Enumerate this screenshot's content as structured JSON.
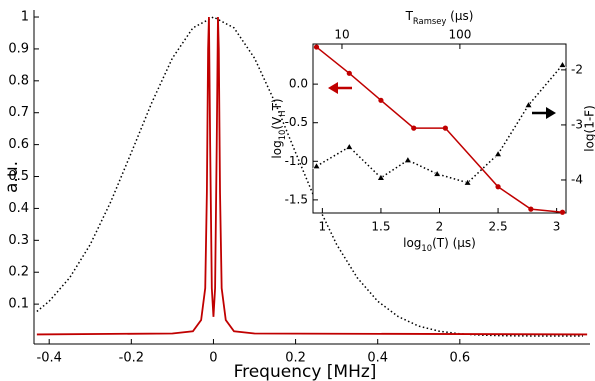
{
  "chart_data": [
    {
      "type": "line",
      "xlabel": "Frequency [MHz]",
      "ylabel": "a.u.",
      "xlim": [
        -0.437,
        0.917
      ],
      "ylim": [
        -0.025,
        1.022
      ],
      "xticks": [
        -0.4,
        -0.2,
        0,
        0.2,
        0.4,
        0.6
      ],
      "yticks": [
        0.1,
        0.2,
        0.3,
        0.4,
        0.5,
        0.6,
        0.7,
        0.8,
        0.9,
        1
      ],
      "series": [
        {
          "color": "#000000",
          "dash": "dotted",
          "x": [
            -0.43,
            -0.4,
            -0.35,
            -0.3,
            -0.25,
            -0.2,
            -0.15,
            -0.1,
            -0.05,
            0,
            0.05,
            0.1,
            0.15,
            0.2,
            0.25,
            0.3,
            0.35,
            0.4,
            0.45,
            0.5,
            0.55,
            0.6,
            0.65,
            0.7,
            0.75,
            0.8,
            0.85,
            0.9
          ],
          "values": [
            0.077,
            0.109,
            0.183,
            0.287,
            0.421,
            0.575,
            0.732,
            0.871,
            0.966,
            1,
            0.966,
            0.871,
            0.732,
            0.575,
            0.421,
            0.287,
            0.183,
            0.109,
            0.061,
            0.031,
            0.0151,
            0.0069,
            0.0029,
            0.0011,
            0.0004,
            0.0001,
            0,
            0
          ]
        },
        {
          "color": "#c00000",
          "x": [
            -0.43,
            -0.1,
            -0.05,
            -0.03,
            -0.02,
            -0.016,
            -0.013,
            -0.011,
            -0.008,
            -0.004,
            0,
            0.004,
            0.008,
            0.011,
            0.013,
            0.016,
            0.02,
            0.03,
            0.05,
            0.1,
            0.91
          ],
          "values": [
            0.005,
            0.008,
            0.015,
            0.05,
            0.15,
            0.45,
            0.9,
            1,
            0.6,
            0.15,
            0.06,
            0.15,
            0.6,
            1,
            0.9,
            0.45,
            0.15,
            0.05,
            0.015,
            0.008,
            0.005
          ]
        }
      ]
    },
    {
      "type": "line",
      "xlabel": [
        "log",
        "10",
        "(T) (μs)"
      ],
      "ylabel": [
        "log",
        "10",
        "(V",
        "H",
        "T)"
      ],
      "y2label": "log(1-F)",
      "x2label": [
        "T",
        "Ramsey",
        " (μs)"
      ],
      "xlim": [
        0.92,
        3.08
      ],
      "ylim": [
        -1.67,
        0.52
      ],
      "y2lim": [
        -4.6,
        -1.53
      ],
      "x2lim": [
        5.68,
        794
      ],
      "x2log": true,
      "xticks": [
        1,
        1.5,
        2,
        2.5,
        3
      ],
      "yticks": [
        {
          "value": 0,
          "label": "0.0"
        },
        {
          "value": -0.5,
          "label": "-0.5"
        },
        {
          "value": -1,
          "label": "-1.0"
        },
        {
          "value": -1.5,
          "label": "-1.5"
        }
      ],
      "y2ticks": [
        -2,
        -3,
        -4
      ],
      "x2ticks": [
        10,
        100
      ],
      "series": [
        {
          "color": "#c00000",
          "marker": "circle",
          "x": [
            0.95,
            1.23,
            1.5,
            1.78,
            2.05,
            2.5,
            2.78,
            3.05
          ],
          "values": [
            0.48,
            0.14,
            -0.21,
            -0.57,
            -0.57,
            -1.33,
            -1.62,
            -1.66
          ]
        },
        {
          "color": "#000000",
          "marker": "triangle",
          "dash": "dotted",
          "axis": "y2",
          "x": [
            0.95,
            1.23,
            1.5,
            1.73,
            1.98,
            2.24,
            2.5,
            2.76,
            3.05
          ],
          "values": [
            -3.75,
            -3.4,
            -3.96,
            -3.64,
            -3.89,
            -4.05,
            -3.53,
            -2.64,
            -1.91
          ]
        }
      ]
    }
  ]
}
